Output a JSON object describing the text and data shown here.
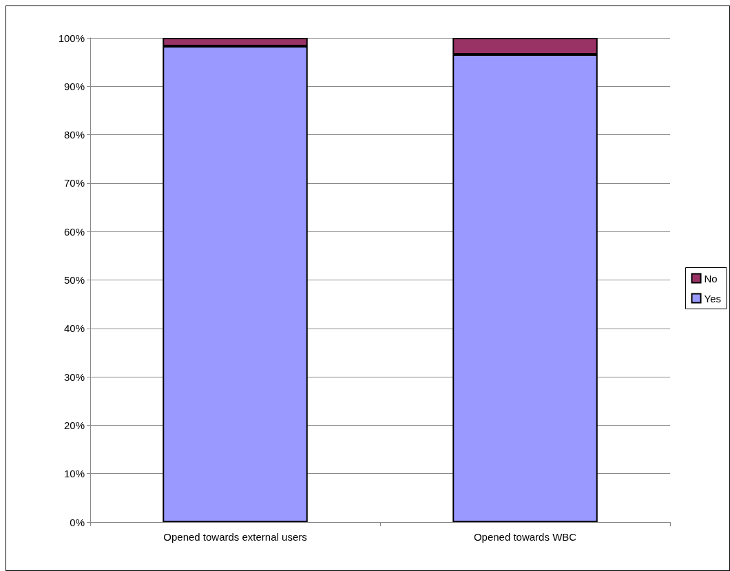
{
  "chart_data": {
    "type": "bar",
    "stacked": true,
    "categories": [
      "Opened towards external users",
      "Opened towards WBC"
    ],
    "series": [
      {
        "name": "Yes",
        "color": "#9999ff",
        "values": [
          98.3,
          96.6
        ]
      },
      {
        "name": "No",
        "color": "#993366",
        "values": [
          1.7,
          3.4
        ]
      }
    ],
    "ylim": [
      0,
      100
    ],
    "yticks": [
      {
        "value": 0,
        "label": "0%"
      },
      {
        "value": 10,
        "label": "10%"
      },
      {
        "value": 20,
        "label": "20%"
      },
      {
        "value": 30,
        "label": "30%"
      },
      {
        "value": 40,
        "label": "40%"
      },
      {
        "value": 50,
        "label": "50%"
      },
      {
        "value": 60,
        "label": "60%"
      },
      {
        "value": 70,
        "label": "70%"
      },
      {
        "value": 80,
        "label": "80%"
      },
      {
        "value": 90,
        "label": "90%"
      },
      {
        "value": 100,
        "label": "100%"
      }
    ],
    "grid": "y",
    "legend": "right"
  }
}
